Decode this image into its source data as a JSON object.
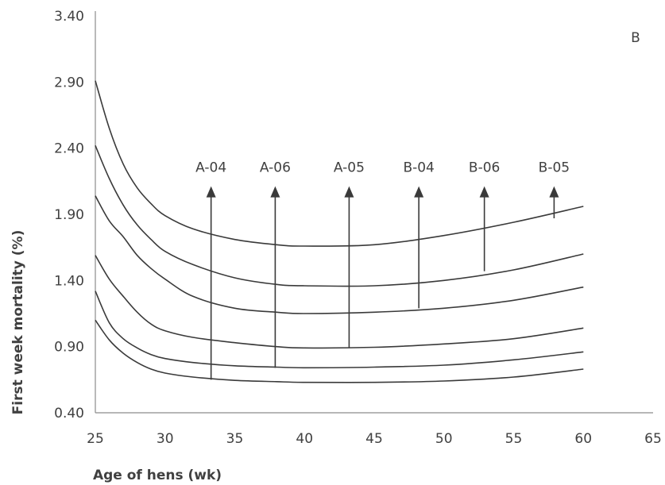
{
  "chart_data": {
    "type": "line",
    "panel_label": "B",
    "xlabel": "Age of hens (wk)",
    "ylabel": "First week mortality (%)",
    "xlim": [
      25,
      65
    ],
    "ylim": [
      0.4,
      3.4
    ],
    "x_ticks": [
      "25",
      "30",
      "35",
      "40",
      "45",
      "50",
      "55",
      "60",
      "65"
    ],
    "y_ticks": [
      "0.40",
      "0.90",
      "1.40",
      "1.90",
      "2.40",
      "2.90",
      "3.40"
    ],
    "grid": false,
    "series": [
      {
        "points": [
          [
            25,
            1.1
          ],
          [
            26,
            0.95
          ],
          [
            27,
            0.85
          ],
          [
            28,
            0.78
          ],
          [
            29,
            0.73
          ],
          [
            30,
            0.7
          ],
          [
            32,
            0.67
          ],
          [
            35,
            0.645
          ],
          [
            38,
            0.635
          ],
          [
            40,
            0.63
          ],
          [
            45,
            0.63
          ],
          [
            50,
            0.64
          ],
          [
            55,
            0.67
          ],
          [
            60,
            0.73
          ]
        ]
      },
      {
        "points": [
          [
            25,
            1.32
          ],
          [
            26,
            1.08
          ],
          [
            27,
            0.96
          ],
          [
            28,
            0.89
          ],
          [
            29,
            0.84
          ],
          [
            30,
            0.81
          ],
          [
            32,
            0.78
          ],
          [
            35,
            0.755
          ],
          [
            38,
            0.745
          ],
          [
            40,
            0.74
          ],
          [
            45,
            0.745
          ],
          [
            50,
            0.76
          ],
          [
            55,
            0.8
          ],
          [
            60,
            0.86
          ]
        ]
      },
      {
        "points": [
          [
            25,
            1.59
          ],
          [
            26,
            1.41
          ],
          [
            27,
            1.28
          ],
          [
            28,
            1.16
          ],
          [
            29,
            1.07
          ],
          [
            30,
            1.02
          ],
          [
            32,
            0.97
          ],
          [
            35,
            0.93
          ],
          [
            38,
            0.9
          ],
          [
            40,
            0.89
          ],
          [
            45,
            0.895
          ],
          [
            50,
            0.92
          ],
          [
            55,
            0.96
          ],
          [
            60,
            1.04
          ]
        ]
      },
      {
        "points": [
          [
            25,
            2.04
          ],
          [
            26,
            1.85
          ],
          [
            27,
            1.73
          ],
          [
            28,
            1.59
          ],
          [
            29,
            1.49
          ],
          [
            30,
            1.41
          ],
          [
            32,
            1.28
          ],
          [
            35,
            1.19
          ],
          [
            38,
            1.16
          ],
          [
            40,
            1.15
          ],
          [
            45,
            1.16
          ],
          [
            50,
            1.19
          ],
          [
            55,
            1.25
          ],
          [
            60,
            1.35
          ]
        ]
      },
      {
        "points": [
          [
            25,
            2.42
          ],
          [
            26,
            2.17
          ],
          [
            27,
            1.97
          ],
          [
            28,
            1.82
          ],
          [
            29,
            1.71
          ],
          [
            30,
            1.62
          ],
          [
            32,
            1.52
          ],
          [
            35,
            1.42
          ],
          [
            38,
            1.37
          ],
          [
            40,
            1.36
          ],
          [
            45,
            1.36
          ],
          [
            50,
            1.4
          ],
          [
            55,
            1.48
          ],
          [
            60,
            1.6
          ]
        ]
      },
      {
        "points": [
          [
            25,
            2.91
          ],
          [
            26,
            2.55
          ],
          [
            27,
            2.28
          ],
          [
            28,
            2.1
          ],
          [
            29,
            1.98
          ],
          [
            30,
            1.89
          ],
          [
            32,
            1.79
          ],
          [
            35,
            1.71
          ],
          [
            38,
            1.67
          ],
          [
            40,
            1.66
          ],
          [
            45,
            1.67
          ],
          [
            50,
            1.74
          ],
          [
            55,
            1.84
          ],
          [
            60,
            1.96
          ]
        ]
      }
    ],
    "annotations": [
      {
        "label": "A-04",
        "x": 33.3,
        "y_from": 0.65,
        "y_to": 2.1
      },
      {
        "label": "A-06",
        "x": 37.9,
        "y_from": 0.74,
        "y_to": 2.1
      },
      {
        "label": "A-05",
        "x": 43.2,
        "y_from": 0.89,
        "y_to": 2.1
      },
      {
        "label": "B-04",
        "x": 48.2,
        "y_from": 1.19,
        "y_to": 2.1
      },
      {
        "label": "B-06",
        "x": 52.9,
        "y_from": 1.47,
        "y_to": 2.1
      },
      {
        "label": "B-05",
        "x": 57.9,
        "y_from": 1.87,
        "y_to": 2.1
      }
    ]
  }
}
